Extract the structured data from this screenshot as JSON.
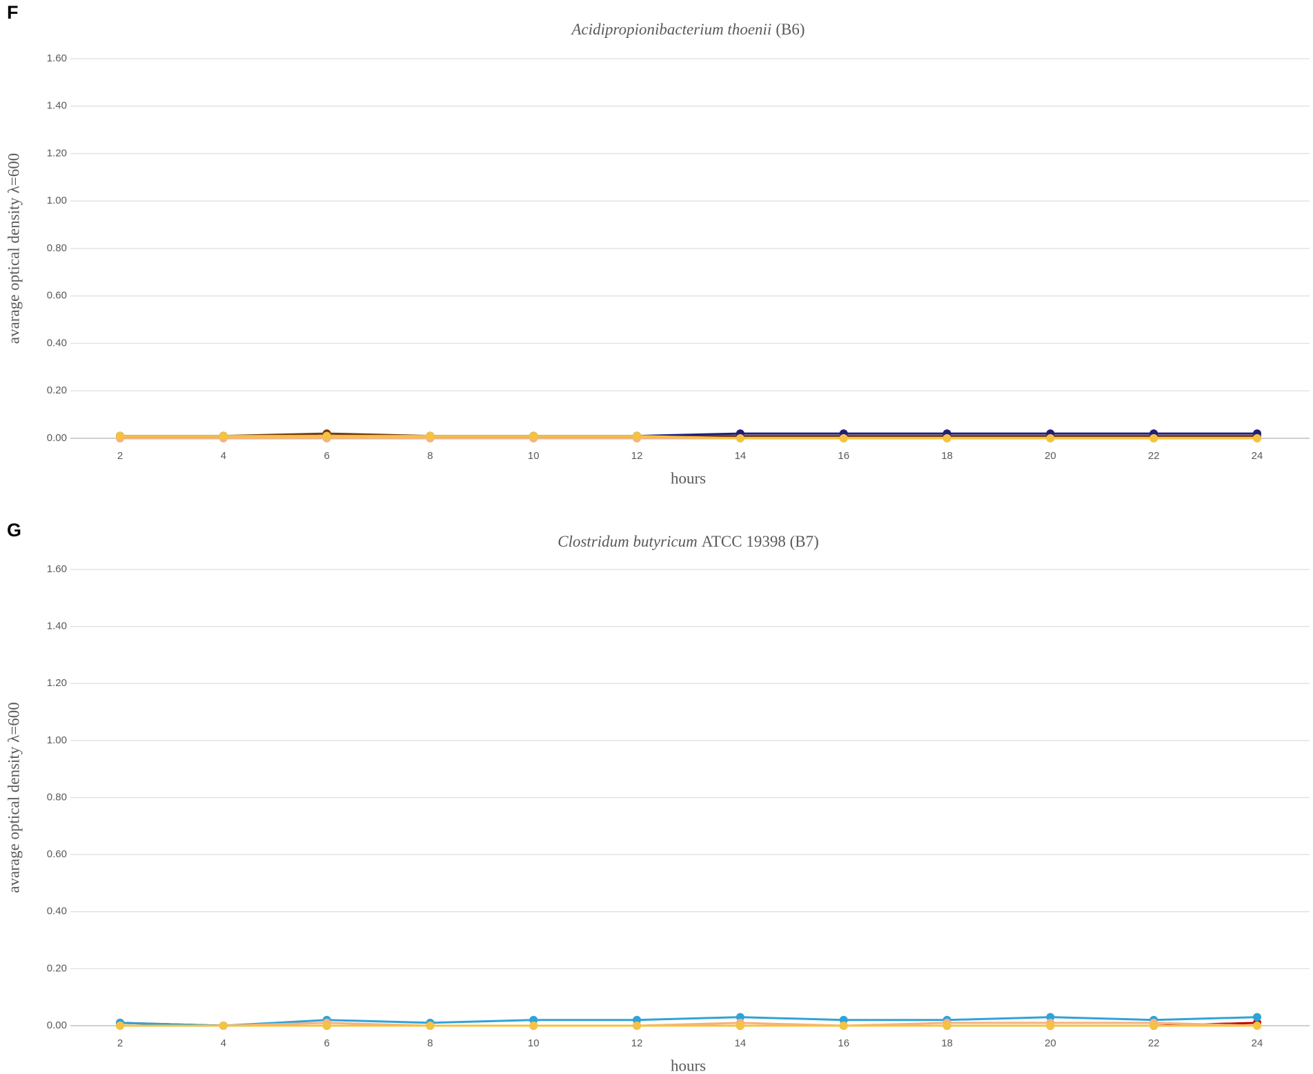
{
  "panels": [
    "F",
    "G"
  ],
  "chart_data": [
    {
      "type": "line",
      "title": [
        "Acidipropionibacterium thoenii",
        "(B6)"
      ],
      "xlabel": "hours",
      "ylabel": "avarage optical density  λ=600",
      "categories": [
        "2",
        "4",
        "6",
        "8",
        "10",
        "12",
        "14",
        "16",
        "18",
        "20",
        "22",
        "24"
      ],
      "ylim": [
        0,
        1.6
      ],
      "yticks": [
        {
          "value": 0,
          "label": "0.00"
        },
        {
          "value": 0.2,
          "label": "0.20"
        },
        {
          "value": 0.4,
          "label": "0.40"
        },
        {
          "value": 0.6,
          "label": "0.60"
        },
        {
          "value": 0.8,
          "label": "0.80"
        },
        {
          "value": 1.0,
          "label": "1.00"
        },
        {
          "value": 1.2,
          "label": "1.20"
        },
        {
          "value": 1.4,
          "label": "1.40"
        },
        {
          "value": 1.6,
          "label": "1.60"
        }
      ],
      "grid": true,
      "series": [
        {
          "color": "#7a3b0c",
          "values": [
            0.01,
            0.01,
            0.02,
            0.01,
            0.01,
            0.01,
            0.01,
            0.01,
            0.01,
            0.01,
            0.01,
            0.01
          ]
        },
        {
          "color": "#1f1f7a",
          "values": [
            0.01,
            0.01,
            0.01,
            0.01,
            0.01,
            0.01,
            0.02,
            0.02,
            0.02,
            0.02,
            0.02,
            0.02
          ]
        },
        {
          "color": "#f4b183",
          "values": [
            0,
            0,
            0,
            0,
            0,
            0,
            0,
            0,
            0,
            0,
            0,
            0
          ]
        },
        {
          "color": "#f5c242",
          "values": [
            0.01,
            0.01,
            0.01,
            0.01,
            0.01,
            0.01,
            0,
            0,
            0,
            0,
            0,
            0
          ]
        }
      ]
    },
    {
      "type": "line",
      "title": [
        "Clostridum butyricum",
        "ATCC 19398 (B7)"
      ],
      "xlabel": "hours",
      "ylabel": "avarage optical density  λ=600",
      "categories": [
        "2",
        "4",
        "6",
        "8",
        "10",
        "12",
        "14",
        "16",
        "18",
        "20",
        "22",
        "24"
      ],
      "ylim": [
        0,
        1.6
      ],
      "yticks": [
        {
          "value": 0,
          "label": "0.00"
        },
        {
          "value": 0.2,
          "label": "0.20"
        },
        {
          "value": 0.4,
          "label": "0.40"
        },
        {
          "value": 0.6,
          "label": "0.60"
        },
        {
          "value": 0.8,
          "label": "0.80"
        },
        {
          "value": 1.0,
          "label": "1.00"
        },
        {
          "value": 1.2,
          "label": "1.20"
        },
        {
          "value": 1.4,
          "label": "1.40"
        },
        {
          "value": 1.6,
          "label": "1.60"
        }
      ],
      "grid": true,
      "series": [
        {
          "color": "#c00000",
          "values": [
            0.01,
            0,
            0,
            0,
            0,
            0,
            0,
            0,
            0,
            0,
            0,
            0.01
          ]
        },
        {
          "color": "#2ea3d8",
          "values": [
            0.01,
            0,
            0.02,
            0.01,
            0.02,
            0.02,
            0.03,
            0.02,
            0.02,
            0.03,
            0.02,
            0.03
          ]
        },
        {
          "color": "#f4b183",
          "values": [
            0,
            0,
            0.01,
            0,
            0,
            0,
            0.01,
            0,
            0.01,
            0.01,
            0.01,
            0
          ]
        },
        {
          "color": "#f5c242",
          "values": [
            0,
            0,
            0,
            0,
            0,
            0,
            0,
            0,
            0,
            0,
            0,
            0
          ]
        }
      ]
    }
  ]
}
